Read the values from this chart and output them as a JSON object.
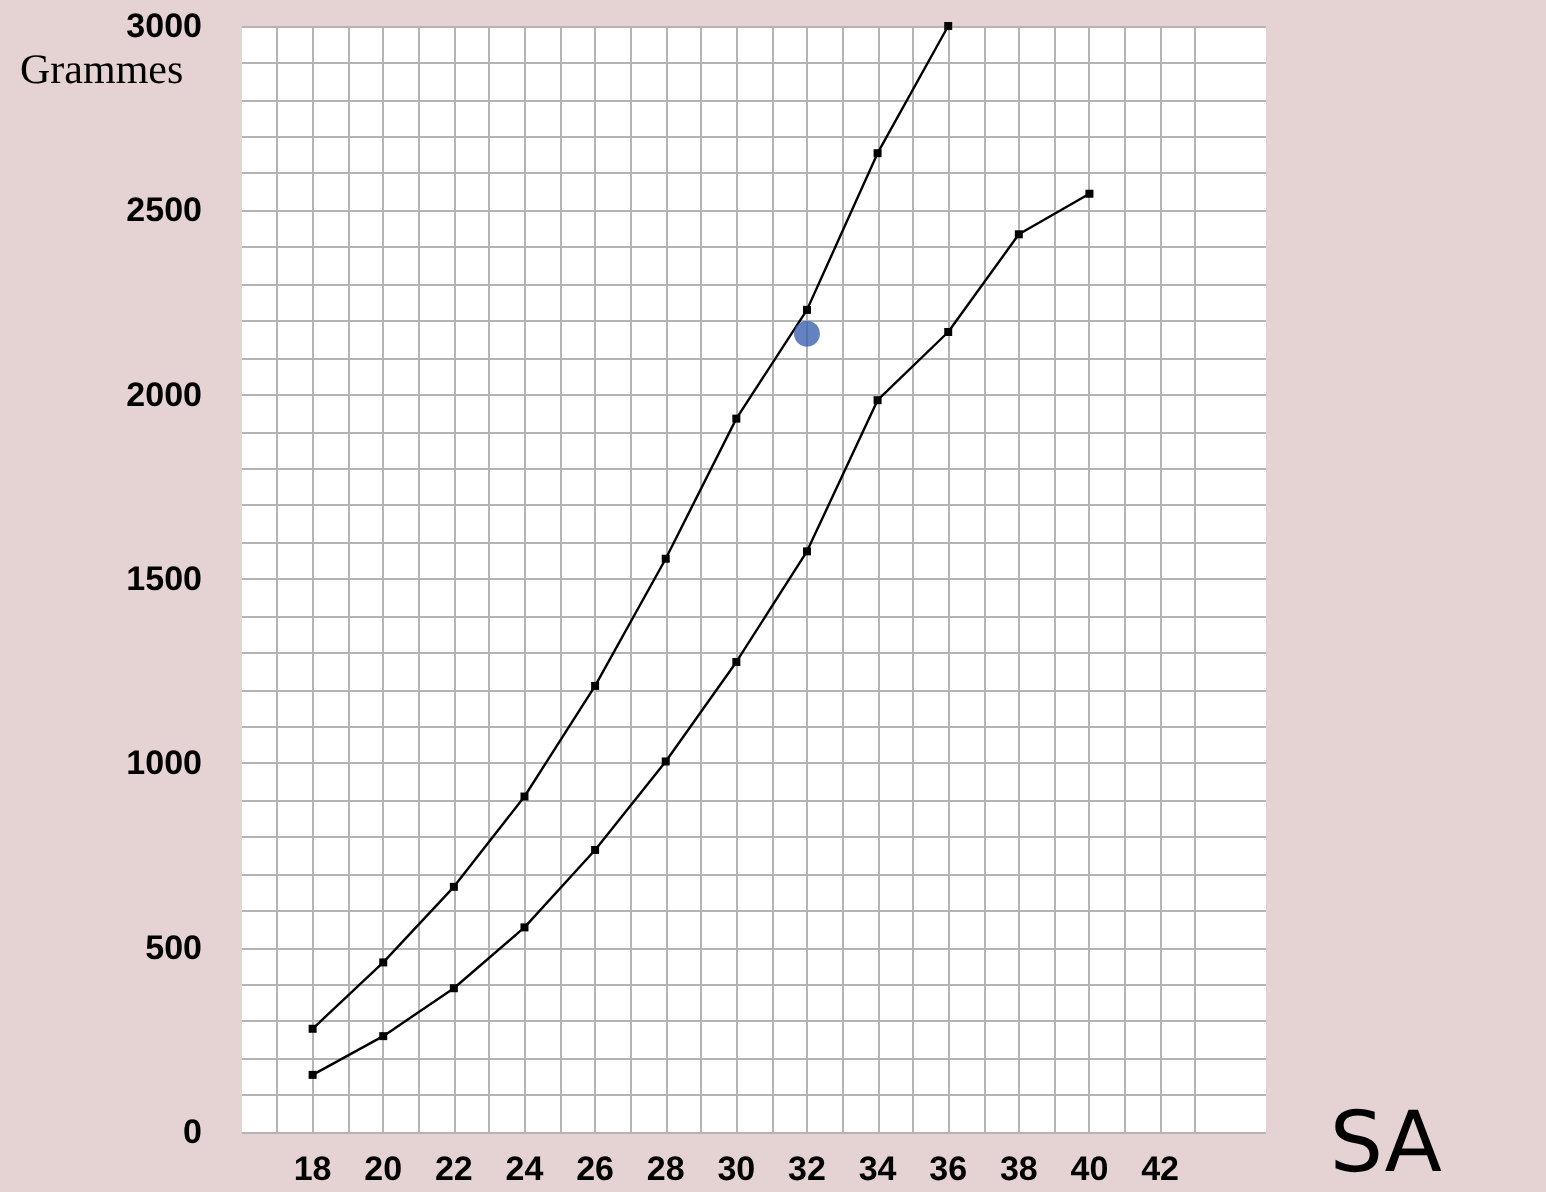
{
  "chart_data": {
    "type": "line",
    "xlabel": "SA",
    "ylabel": "Grammes",
    "xlim": [
      16,
      45
    ],
    "xticks": [
      18,
      20,
      22,
      24,
      26,
      28,
      30,
      32,
      34,
      36,
      38,
      40,
      42
    ],
    "ylim": [
      0,
      3000
    ],
    "yticks": [
      0,
      500,
      1000,
      1500,
      2000,
      2500,
      3000
    ],
    "grid": true,
    "line_style": "solid",
    "series": [
      {
        "color": "#000000",
        "marker": "square",
        "x": [
          18,
          20,
          22,
          24,
          26,
          28,
          30,
          32,
          34,
          36
        ],
        "values": [
          280,
          460,
          665,
          910,
          1210,
          1555,
          1935,
          2230,
          2655,
          3000
        ]
      },
      {
        "color": "#000000",
        "marker": "square",
        "x": [
          18,
          20,
          22,
          24,
          26,
          28,
          30,
          32,
          34,
          36,
          38,
          40
        ],
        "values": [
          155,
          260,
          390,
          555,
          765,
          1005,
          1275,
          1575,
          1985,
          2170,
          2435,
          2545
        ]
      },
      {
        "type": "scatter",
        "color": "#3f63b0",
        "marker": "circle",
        "x": [
          32
        ],
        "values": [
          2165
        ]
      }
    ]
  }
}
